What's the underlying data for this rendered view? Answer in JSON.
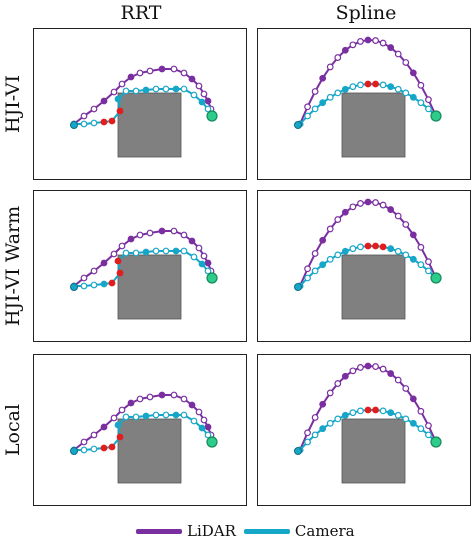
{
  "columns": [
    "RRT",
    "Spline"
  ],
  "rows": [
    "HJI-VI",
    "HJI-VI Warm",
    "Local"
  ],
  "legend": [
    {
      "label": "LiDAR",
      "color": "#7a2fa0"
    },
    {
      "label": "Camera",
      "color": "#16a6c8"
    }
  ],
  "colors": {
    "lidar": "#7a2fa0",
    "camera": "#16a6c8",
    "intervention": "#e21d1d",
    "goal": "#2ecc8a",
    "obstacle": "#808080"
  },
  "panels": [
    {
      "row": "HJI-VI",
      "column": "RRT"
    },
    {
      "row": "HJI-VI",
      "column": "Spline"
    },
    {
      "row": "HJI-VI Warm",
      "column": "RRT"
    },
    {
      "row": "HJI-VI Warm",
      "column": "Spline"
    },
    {
      "row": "Local",
      "column": "RRT"
    },
    {
      "row": "Local",
      "column": "Spline"
    }
  ]
}
